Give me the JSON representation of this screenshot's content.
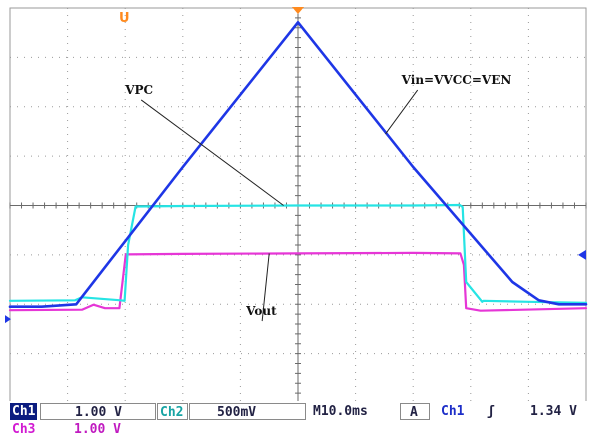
{
  "chart_data": {
    "type": "line",
    "title": "",
    "xlabel": "",
    "ylabel": "",
    "xlim": [
      0,
      100
    ],
    "ylim": [
      -4,
      4
    ],
    "grid": true,
    "divisions": {
      "x": 10,
      "y": 8
    },
    "series": [
      {
        "key": "ch1",
        "name": "Vin=VVCC=VEN",
        "color": "#1e36e6",
        "stroke_width": 2.6,
        "x": [
          0,
          5.5,
          11.5,
          30,
          50,
          70,
          87.2,
          91.8,
          95.3,
          100
        ],
        "y": [
          -2.05,
          -2.05,
          -2.0,
          0.78,
          3.71,
          0.78,
          -1.55,
          -1.92,
          -2.0,
          -2.0
        ]
      },
      {
        "key": "ch2",
        "name": "VPC",
        "color": "#26e4e4",
        "stroke_width": 2.2,
        "x": [
          0,
          11.3,
          12.5,
          19.2,
          19.9,
          20.5,
          21.8,
          30,
          50,
          70,
          78.1,
          78.6,
          79.2,
          82.0,
          82.2,
          90,
          100
        ],
        "y": [
          -1.93,
          -1.92,
          -1.86,
          -1.92,
          -1.93,
          -0.8,
          -0.02,
          -0.01,
          0.0,
          0.0,
          0.01,
          -0.03,
          -1.55,
          -1.95,
          -1.93,
          -1.95,
          -1.97
        ]
      },
      {
        "key": "ch3",
        "name": "Vout",
        "color": "#e636d6",
        "stroke_width": 2.2,
        "x": [
          0,
          12.5,
          14.5,
          16.5,
          19.0,
          20.1,
          30,
          50,
          70,
          78.2,
          78.8,
          79.2,
          81.7,
          100
        ],
        "y": [
          -2.12,
          -2.11,
          -2.01,
          -2.08,
          -2.08,
          -0.99,
          -0.98,
          -0.97,
          -0.96,
          -0.97,
          -1.2,
          -2.08,
          -2.13,
          -2.08
        ]
      }
    ],
    "annotations": [
      {
        "text": "VPC",
        "series": "ch2",
        "x": 20.0,
        "y": 2.26,
        "target": [
          47.5,
          0.0
        ]
      },
      {
        "text": "Vin=VVCC=VEN",
        "series": "ch1",
        "x": 68.0,
        "y": 2.46,
        "target": [
          65.2,
          1.45
        ]
      },
      {
        "text": "Vout",
        "series": "ch3",
        "x": 41.0,
        "y": -2.22,
        "target": [
          45.0,
          -0.97
        ]
      }
    ],
    "markers": {
      "trigger_position_top": 50,
      "trigger_level_right": -1.0,
      "ground_left": -2.3,
      "memory_marker_label": "U"
    }
  },
  "status": {
    "ch1_label": "Ch1",
    "ch1_scale": "1.00 V",
    "ch2_label": "Ch2",
    "ch2_scale": "500mV",
    "timebase": "M10.0ms",
    "trigger_mode": "A",
    "trigger_source": "Ch1",
    "trigger_slope": "ʃ",
    "trigger_level": "1.34 V",
    "ch3_label": "Ch3",
    "ch3_scale": "1.00 V"
  },
  "colors": {
    "screen_bg": "#ffffff",
    "grid": "#9a9a9a",
    "marker": "#ff8a1e",
    "trigger_arrow": "#1e36e6"
  }
}
